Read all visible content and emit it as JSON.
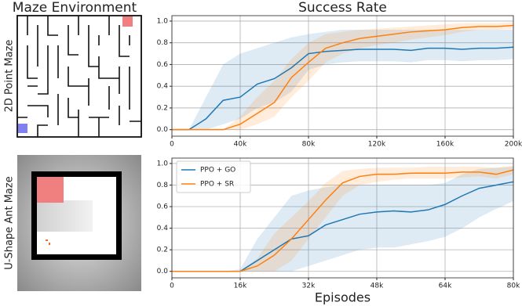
{
  "panel": {
    "title": "Maze Environment",
    "rows": [
      "2D Point Maze",
      "U-Shape Ant Maze"
    ]
  },
  "chart_data": [
    {
      "type": "line",
      "title": "Success Rate",
      "x": [
        0,
        10000,
        20000,
        30000,
        40000,
        50000,
        60000,
        70000,
        80000,
        90000,
        100000,
        110000,
        120000,
        130000,
        140000,
        150000,
        160000,
        170000,
        180000,
        190000,
        200000
      ],
      "series": [
        {
          "color": "#1f77b4",
          "values": [
            0,
            0,
            0.1,
            0.27,
            0.3,
            0.42,
            0.47,
            0.57,
            0.7,
            0.72,
            0.73,
            0.74,
            0.74,
            0.74,
            0.73,
            0.75,
            0.75,
            0.74,
            0.75,
            0.75,
            0.76
          ],
          "lower": [
            0,
            0,
            0,
            0.05,
            0.1,
            0.2,
            0.25,
            0.35,
            0.55,
            0.6,
            0.62,
            0.63,
            0.63,
            0.63,
            0.62,
            0.64,
            0.64,
            0.63,
            0.64,
            0.64,
            0.65
          ],
          "upper": [
            0,
            0,
            0.3,
            0.6,
            0.7,
            0.75,
            0.8,
            0.85,
            0.88,
            0.9,
            0.92,
            0.92,
            0.92,
            0.92,
            0.92,
            0.92,
            0.92,
            0.92,
            0.92,
            0.92,
            0.92
          ]
        },
        {
          "color": "#ff7f0e",
          "values": [
            0,
            0,
            0,
            0,
            0.05,
            0.15,
            0.25,
            0.48,
            0.62,
            0.75,
            0.8,
            0.84,
            0.86,
            0.88,
            0.9,
            0.91,
            0.92,
            0.94,
            0.95,
            0.95,
            0.96
          ],
          "lower": [
            0,
            0,
            0,
            0,
            0,
            0.05,
            0.12,
            0.3,
            0.45,
            0.62,
            0.7,
            0.75,
            0.78,
            0.8,
            0.83,
            0.85,
            0.87,
            0.9,
            0.92,
            0.92,
            0.93
          ],
          "upper": [
            0,
            0,
            0,
            0,
            0.12,
            0.3,
            0.45,
            0.65,
            0.8,
            0.88,
            0.9,
            0.92,
            0.93,
            0.94,
            0.95,
            0.96,
            0.97,
            0.98,
            0.98,
            0.98,
            0.99
          ]
        }
      ],
      "xlim": [
        0,
        200000
      ],
      "xticks": [
        0,
        {
          "value": 40000,
          "label": "40k"
        },
        {
          "value": 80000,
          "label": "80k"
        },
        {
          "value": 120000,
          "label": "120k"
        },
        {
          "value": 160000,
          "label": "160k"
        },
        {
          "value": 200000,
          "label": "200k"
        }
      ],
      "ylim": [
        -0.06,
        1.05
      ],
      "yticks": [
        {
          "value": 0,
          "label": "0.0"
        },
        0.2,
        0.4,
        0.6,
        0.8,
        {
          "value": 1,
          "label": "1.0"
        }
      ],
      "grid": true
    },
    {
      "type": "line",
      "x_label": "Episodes",
      "x": [
        0,
        4000,
        8000,
        12000,
        16000,
        20000,
        24000,
        28000,
        32000,
        36000,
        40000,
        44000,
        48000,
        52000,
        56000,
        60000,
        64000,
        68000,
        72000,
        76000,
        80000
      ],
      "series": [
        {
          "name": "PPO + GO",
          "color": "#1f77b4",
          "values": [
            0,
            0,
            0,
            0,
            0,
            0.1,
            0.2,
            0.3,
            0.33,
            0.43,
            0.48,
            0.53,
            0.55,
            0.56,
            0.55,
            0.57,
            0.62,
            0.7,
            0.77,
            0.8,
            0.83
          ],
          "lower": [
            0,
            0,
            0,
            0,
            0,
            0,
            0,
            0,
            0.05,
            0.1,
            0.15,
            0.2,
            0.22,
            0.22,
            0.25,
            0.28,
            0.32,
            0.4,
            0.5,
            0.58,
            0.65
          ],
          "upper": [
            0,
            0,
            0,
            0,
            0.02,
            0.3,
            0.5,
            0.7,
            0.75,
            0.78,
            0.8,
            0.8,
            0.8,
            0.8,
            0.8,
            0.8,
            0.82,
            0.9,
            0.95,
            0.96,
            0.97
          ]
        },
        {
          "name": "PPO + SR",
          "color": "#ff7f0e",
          "values": [
            0,
            0,
            0,
            0,
            0,
            0.05,
            0.15,
            0.3,
            0.48,
            0.66,
            0.82,
            0.88,
            0.9,
            0.9,
            0.91,
            0.91,
            0.91,
            0.92,
            0.92,
            0.9,
            0.94
          ],
          "lower": [
            0,
            0,
            0,
            0,
            0,
            0,
            0,
            0.1,
            0.3,
            0.5,
            0.7,
            0.8,
            0.83,
            0.85,
            0.86,
            0.86,
            0.86,
            0.87,
            0.88,
            0.86,
            0.9
          ],
          "upper": [
            0,
            0,
            0,
            0,
            0,
            0.12,
            0.35,
            0.5,
            0.65,
            0.82,
            0.93,
            0.95,
            0.96,
            0.96,
            0.96,
            0.97,
            0.97,
            0.97,
            0.97,
            0.96,
            0.98
          ]
        }
      ],
      "xlim": [
        0,
        80000
      ],
      "xticks": [
        0,
        {
          "value": 16000,
          "label": "16k"
        },
        {
          "value": 32000,
          "label": "32k"
        },
        {
          "value": 48000,
          "label": "48k"
        },
        {
          "value": 64000,
          "label": "64k"
        },
        {
          "value": 80000,
          "label": "80k"
        }
      ],
      "ylim": [
        -0.06,
        1.05
      ],
      "yticks": [
        {
          "value": 0,
          "label": "0.0"
        },
        0.2,
        0.4,
        0.6,
        0.8,
        {
          "value": 1,
          "label": "1.0"
        }
      ],
      "grid": true,
      "legend": "upper left"
    }
  ]
}
